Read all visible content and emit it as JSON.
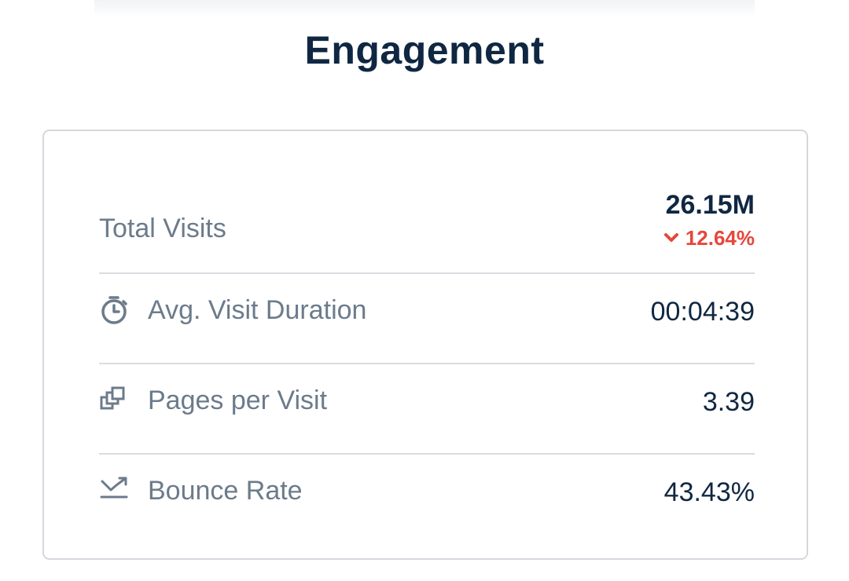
{
  "header": {
    "title": "Engagement"
  },
  "metrics": {
    "total_visits": {
      "label": "Total Visits",
      "value": "26.15M",
      "change": "12.64%",
      "change_direction": "down",
      "change_color": "#e5473b"
    },
    "avg_visit_duration": {
      "label": "Avg. Visit Duration",
      "value": "00:04:39",
      "icon": "stopwatch-icon"
    },
    "pages_per_visit": {
      "label": "Pages per Visit",
      "value": "3.39",
      "icon": "stacked-pages-icon"
    },
    "bounce_rate": {
      "label": "Bounce Rate",
      "value": "43.43%",
      "icon": "bounce-arrow-icon"
    }
  },
  "colors": {
    "title": "#0f2742",
    "label": "#6c7b8b",
    "value": "#0f2742",
    "negative": "#e5473b",
    "border": "#d4d8dd"
  }
}
